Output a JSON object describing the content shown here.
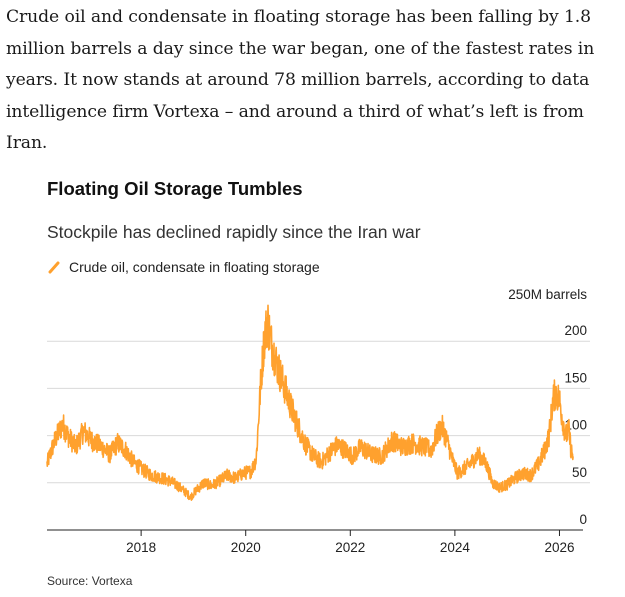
{
  "article": {
    "paragraph": "Crude oil and condensate in floating storage has been falling by 1.8 million barrels a day since the war began, one of the fastest rates in years. It now stands at around 78 million barrels, according to data intelligence firm Vortexa – and around a third of what’s left is from Iran."
  },
  "colors": {
    "series": "#FFA12E",
    "axis": "#222222",
    "grid": "#d9d9d9"
  },
  "chart_data": {
    "type": "line",
    "title": "Floating Oil Storage Tumbles",
    "subtitle": "Stockpile has declined rapidly since the Iran war",
    "ylabel_unit": "250M barrels",
    "ylim": [
      0,
      250
    ],
    "xlim": [
      2016.2,
      2026.45
    ],
    "y_ticks": [
      0,
      50,
      100,
      150,
      200
    ],
    "x_ticks": [
      2018,
      2020,
      2022,
      2024,
      2026
    ],
    "grid": "horizontal",
    "legend": "top-left",
    "series": [
      {
        "name": "Crude oil, condensate in floating storage",
        "points": [
          [
            2016.2,
            70
          ],
          [
            2016.35,
            95
          ],
          [
            2016.5,
            112
          ],
          [
            2016.6,
            100
          ],
          [
            2016.75,
            88
          ],
          [
            2016.9,
            105
          ],
          [
            2017.05,
            95
          ],
          [
            2017.25,
            88
          ],
          [
            2017.4,
            80
          ],
          [
            2017.55,
            92
          ],
          [
            2017.7,
            85
          ],
          [
            2017.85,
            72
          ],
          [
            2018.0,
            65
          ],
          [
            2018.2,
            58
          ],
          [
            2018.4,
            55
          ],
          [
            2018.55,
            52
          ],
          [
            2018.7,
            47
          ],
          [
            2018.85,
            40
          ],
          [
            2018.95,
            35
          ],
          [
            2019.05,
            42
          ],
          [
            2019.2,
            50
          ],
          [
            2019.35,
            47
          ],
          [
            2019.5,
            52
          ],
          [
            2019.65,
            58
          ],
          [
            2019.8,
            55
          ],
          [
            2019.95,
            60
          ],
          [
            2020.1,
            62
          ],
          [
            2020.2,
            75
          ],
          [
            2020.28,
            150
          ],
          [
            2020.35,
            200
          ],
          [
            2020.42,
            222
          ],
          [
            2020.48,
            200
          ],
          [
            2020.6,
            175
          ],
          [
            2020.75,
            150
          ],
          [
            2020.88,
            128
          ],
          [
            2021.0,
            110
          ],
          [
            2021.15,
            90
          ],
          [
            2021.3,
            78
          ],
          [
            2021.45,
            72
          ],
          [
            2021.6,
            82
          ],
          [
            2021.75,
            90
          ],
          [
            2021.9,
            85
          ],
          [
            2022.05,
            78
          ],
          [
            2022.2,
            88
          ],
          [
            2022.4,
            80
          ],
          [
            2022.6,
            78
          ],
          [
            2022.8,
            95
          ],
          [
            2023.0,
            88
          ],
          [
            2023.2,
            92
          ],
          [
            2023.4,
            88
          ],
          [
            2023.55,
            85
          ],
          [
            2023.65,
            100
          ],
          [
            2023.75,
            110
          ],
          [
            2023.85,
            95
          ],
          [
            2023.95,
            75
          ],
          [
            2024.05,
            60
          ],
          [
            2024.25,
            68
          ],
          [
            2024.45,
            80
          ],
          [
            2024.6,
            70
          ],
          [
            2024.72,
            50
          ],
          [
            2024.85,
            45
          ],
          [
            2025.0,
            48
          ],
          [
            2025.15,
            55
          ],
          [
            2025.3,
            60
          ],
          [
            2025.45,
            58
          ],
          [
            2025.6,
            70
          ],
          [
            2025.72,
            85
          ],
          [
            2025.8,
            100
          ],
          [
            2025.88,
            140
          ],
          [
            2025.93,
            145
          ],
          [
            2026.0,
            138
          ],
          [
            2026.05,
            120
          ],
          [
            2026.12,
            100
          ],
          [
            2026.18,
            105
          ],
          [
            2026.22,
            85
          ],
          [
            2026.26,
            78
          ]
        ]
      }
    ],
    "source": "Source: Vortexa"
  }
}
